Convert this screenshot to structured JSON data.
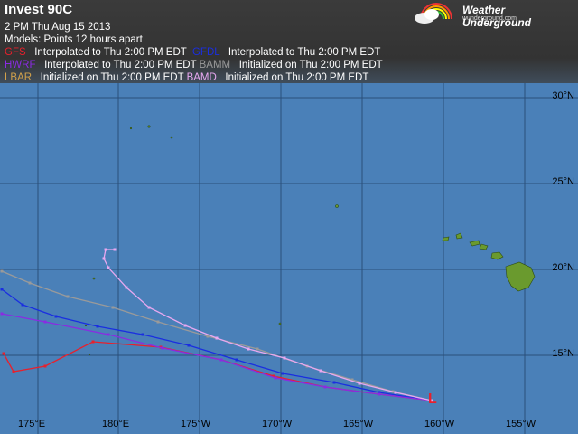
{
  "header": {
    "title": "Invest 90C",
    "time": "2 PM  Thu Aug 15 2013",
    "models_line": "Models:  Points 12 hours apart",
    "models": [
      {
        "name": "GFS",
        "status": "Interpolated to Thu 2:00 PM EDT",
        "color": "#e8202c"
      },
      {
        "name": "GFDL",
        "status": "Interpolated to Thu 2:00 PM EDT",
        "color": "#1a2ee0"
      },
      {
        "name": "HWRF",
        "status": "Interpolated to Thu 2:00 PM EDT",
        "color": "#8a2be2"
      },
      {
        "name": "BAMM",
        "status": "Initialized on Thu 2:00 PM EDT",
        "color": "#9a9a9a"
      },
      {
        "name": "LBAR",
        "status": "Initialized on Thu 2:00 PM EDT",
        "color": "#d2a14a"
      },
      {
        "name": "BAMD",
        "status": "Initialized on Thu 2:00 PM EDT",
        "color": "#e8a8f0"
      }
    ]
  },
  "logo": {
    "name": "Weather Underground",
    "url_text": "wunderground.com",
    "icon": "cloud-rainbow-icon"
  },
  "lat_labels": [
    "30°N",
    "25°N",
    "20°N",
    "15°N"
  ],
  "lon_labels": [
    "175°E",
    "180°E",
    "175°W",
    "170°W",
    "165°W",
    "160°W",
    "155°W"
  ],
  "storm_marker": "L",
  "colors": {
    "ocean": "#4a80b8",
    "land": "#6a9a2e",
    "grid": "#2a4f7a"
  }
}
